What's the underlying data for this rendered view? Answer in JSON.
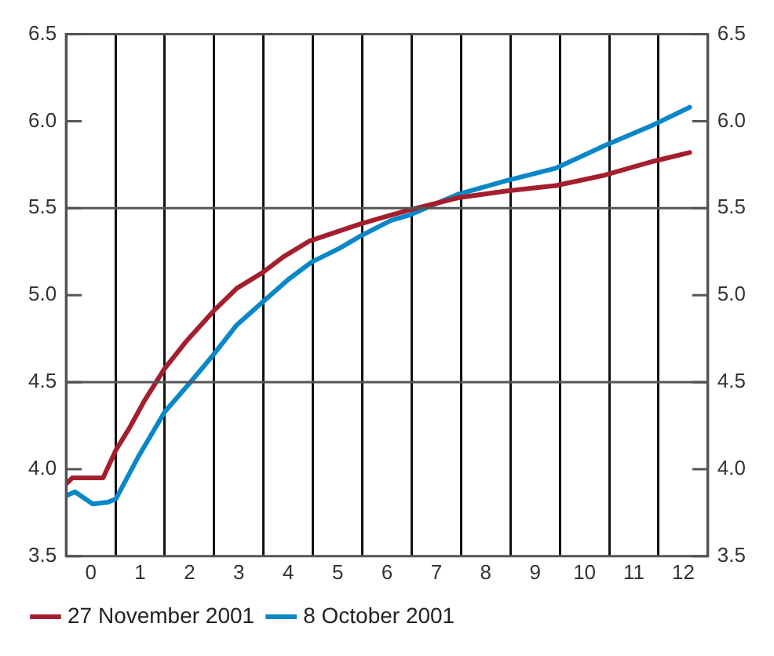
{
  "chart_data": {
    "type": "line",
    "xlim": [
      -0.5,
      12.5
    ],
    "xticks": [
      {
        "value": -0.5,
        "label": null
      },
      0,
      {
        "value": 0.5,
        "label": null
      },
      1,
      {
        "value": 1.5,
        "label": null
      },
      2,
      {
        "value": 2.5,
        "label": null
      },
      3,
      {
        "value": 3.5,
        "label": null
      },
      4,
      {
        "value": 4.5,
        "label": null
      },
      5,
      {
        "value": 5.5,
        "label": null
      },
      6,
      {
        "value": 6.5,
        "label": null
      },
      7,
      {
        "value": 7.5,
        "label": null
      },
      8,
      {
        "value": 8.5,
        "label": null
      },
      9,
      {
        "value": 9.5,
        "label": null
      },
      10,
      {
        "value": 10.5,
        "label": null
      },
      11,
      {
        "value": 11.5,
        "label": null
      },
      12,
      {
        "value": 12.5,
        "label": null
      }
    ],
    "ylim": [
      3.5,
      6.5
    ],
    "yticks": [
      3.5,
      {
        "value": 4,
        "label": "4.0"
      },
      4.5,
      {
        "value": 5,
        "label": "5.0"
      },
      5.5,
      {
        "value": 6,
        "label": "6.0"
      },
      6.5
    ],
    "y2lim": [
      3.5,
      6.5
    ],
    "y2ticks": [
      3.5,
      {
        "value": 4,
        "label": "4.0"
      },
      4.5,
      {
        "value": 5,
        "label": "5.0"
      },
      5.5,
      {
        "value": 6,
        "label": "6.0"
      },
      6.5
    ],
    "grid": "x",
    "legend": "bottom",
    "marker": "none",
    "line_style": "solid",
    "ref_lines": [
      {
        "axis": "y",
        "value": 4.5,
        "color": "#555555"
      },
      {
        "axis": "y",
        "value": 5.5,
        "color": "#555555"
      }
    ],
    "series": [
      {
        "name": "27 November 2001",
        "color": "#a51e2d",
        "x": [
          -0.48,
          -0.375,
          0.25,
          0.51,
          0.77,
          1.08,
          1.5,
          1.92,
          2.49,
          2.96,
          3.48,
          3.9,
          4.42,
          4.94,
          5.46,
          6.08,
          6.45,
          7.44,
          8.44,
          9.42,
          10.41,
          11.4,
          12.13
        ],
        "values": [
          3.92,
          3.95,
          3.95,
          4.11,
          4.23,
          4.39,
          4.58,
          4.73,
          4.91,
          5.04,
          5.13,
          5.22,
          5.31,
          5.36,
          5.41,
          5.46,
          5.49,
          5.56,
          5.6,
          5.63,
          5.69,
          5.77,
          5.82
        ]
      },
      {
        "name": "8 October 2001",
        "color": "#0a87c8",
        "x": [
          -0.48,
          -0.32,
          0.04,
          0.35,
          0.51,
          0.98,
          1.5,
          2.02,
          2.49,
          2.96,
          3.48,
          4.0,
          4.47,
          5.04,
          5.46,
          6.08,
          6.45,
          7.44,
          8.44,
          9.42,
          10.41,
          11.4,
          12.13
        ],
        "values": [
          3.85,
          3.87,
          3.8,
          3.81,
          3.83,
          4.08,
          4.33,
          4.5,
          4.66,
          4.83,
          4.96,
          5.09,
          5.19,
          5.27,
          5.34,
          5.43,
          5.46,
          5.58,
          5.66,
          5.73,
          5.86,
          5.98,
          6.08
        ]
      }
    ]
  }
}
